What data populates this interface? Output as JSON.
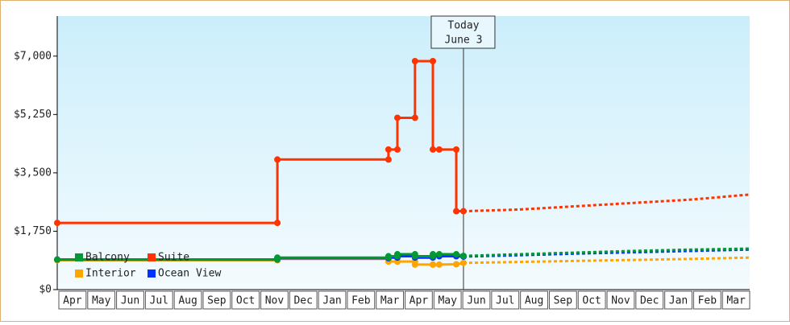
{
  "chart_data": {
    "type": "line",
    "categories": [
      "Apr",
      "May",
      "Jun",
      "Jul",
      "Aug",
      "Sep",
      "Oct",
      "Nov",
      "Dec",
      "Jan",
      "Feb",
      "Mar",
      "Apr",
      "May",
      "Jun",
      "Jul",
      "Aug",
      "Sep",
      "Oct",
      "Nov",
      "Dec",
      "Jan",
      "Feb",
      "Mar"
    ],
    "xlim": [
      0,
      24
    ],
    "ylim": [
      0,
      8200
    ],
    "yticks": [
      {
        "value": 0,
        "label": "$0"
      },
      {
        "value": 1750,
        "label": "$1,750"
      },
      {
        "value": 3500,
        "label": "$3,500"
      },
      {
        "value": 5250,
        "label": "$5,250"
      },
      {
        "value": 7000,
        "label": "$7,000"
      }
    ],
    "annotation": {
      "lines": [
        "Today",
        "June 3"
      ],
      "x": 14.08
    },
    "legend": "lower left",
    "series": [
      {
        "name": "Suite",
        "color": "#ff3300",
        "x": [
          0,
          7.63,
          7.63,
          11.48,
          11.48,
          11.79,
          11.79,
          12.4,
          12.4,
          13.02,
          13.02,
          13.24,
          13.83,
          13.83,
          14.08
        ],
        "values": [
          2000,
          2000,
          3900,
          3900,
          4200,
          4200,
          5150,
          5150,
          6850,
          6850,
          4200,
          4200,
          4200,
          2350,
          2350
        ],
        "forecast": {
          "x": [
            14.08,
            16,
            18,
            20,
            22,
            24
          ],
          "values": [
            2350,
            2400,
            2500,
            2600,
            2700,
            2850
          ]
        }
      },
      {
        "name": "Interior",
        "color": "#ffa500",
        "x": [
          0,
          7.63,
          7.63,
          11.48,
          11.48,
          11.79,
          11.79,
          12.4,
          12.4,
          13.02,
          13.02,
          13.24,
          13.83,
          14.08
        ],
        "values": [
          880,
          880,
          920,
          920,
          840,
          840,
          840,
          840,
          750,
          750,
          750,
          750,
          760,
          800
        ],
        "forecast": {
          "x": [
            14.08,
            16,
            18,
            20,
            22,
            24
          ],
          "values": [
            800,
            830,
            860,
            890,
            920,
            960
          ]
        }
      },
      {
        "name": "Ocean View",
        "color": "#0033ff",
        "x": [
          0,
          7.63,
          7.63,
          11.48,
          11.48,
          11.79,
          11.79,
          12.4,
          12.4,
          13.02,
          13.02,
          13.24,
          13.83,
          14.08
        ],
        "values": [
          900,
          900,
          940,
          940,
          960,
          960,
          1000,
          1000,
          960,
          960,
          1000,
          1000,
          1000,
          990
        ],
        "forecast": {
          "x": [
            14.08,
            16,
            18,
            20,
            22,
            24
          ],
          "values": [
            990,
            1030,
            1080,
            1120,
            1160,
            1200
          ]
        }
      },
      {
        "name": "Balcony",
        "color": "#009933",
        "x": [
          0,
          7.63,
          7.63,
          11.48,
          11.48,
          11.79,
          11.79,
          12.4,
          12.4,
          13.02,
          13.02,
          13.24,
          13.83,
          14.08
        ],
        "values": [
          900,
          900,
          960,
          960,
          1000,
          1000,
          1060,
          1060,
          1000,
          1000,
          1060,
          1060,
          1060,
          1010
        ],
        "forecast": {
          "x": [
            14.08,
            16,
            18,
            20,
            22,
            24
          ],
          "values": [
            1010,
            1060,
            1110,
            1160,
            1200,
            1230
          ]
        }
      }
    ]
  }
}
